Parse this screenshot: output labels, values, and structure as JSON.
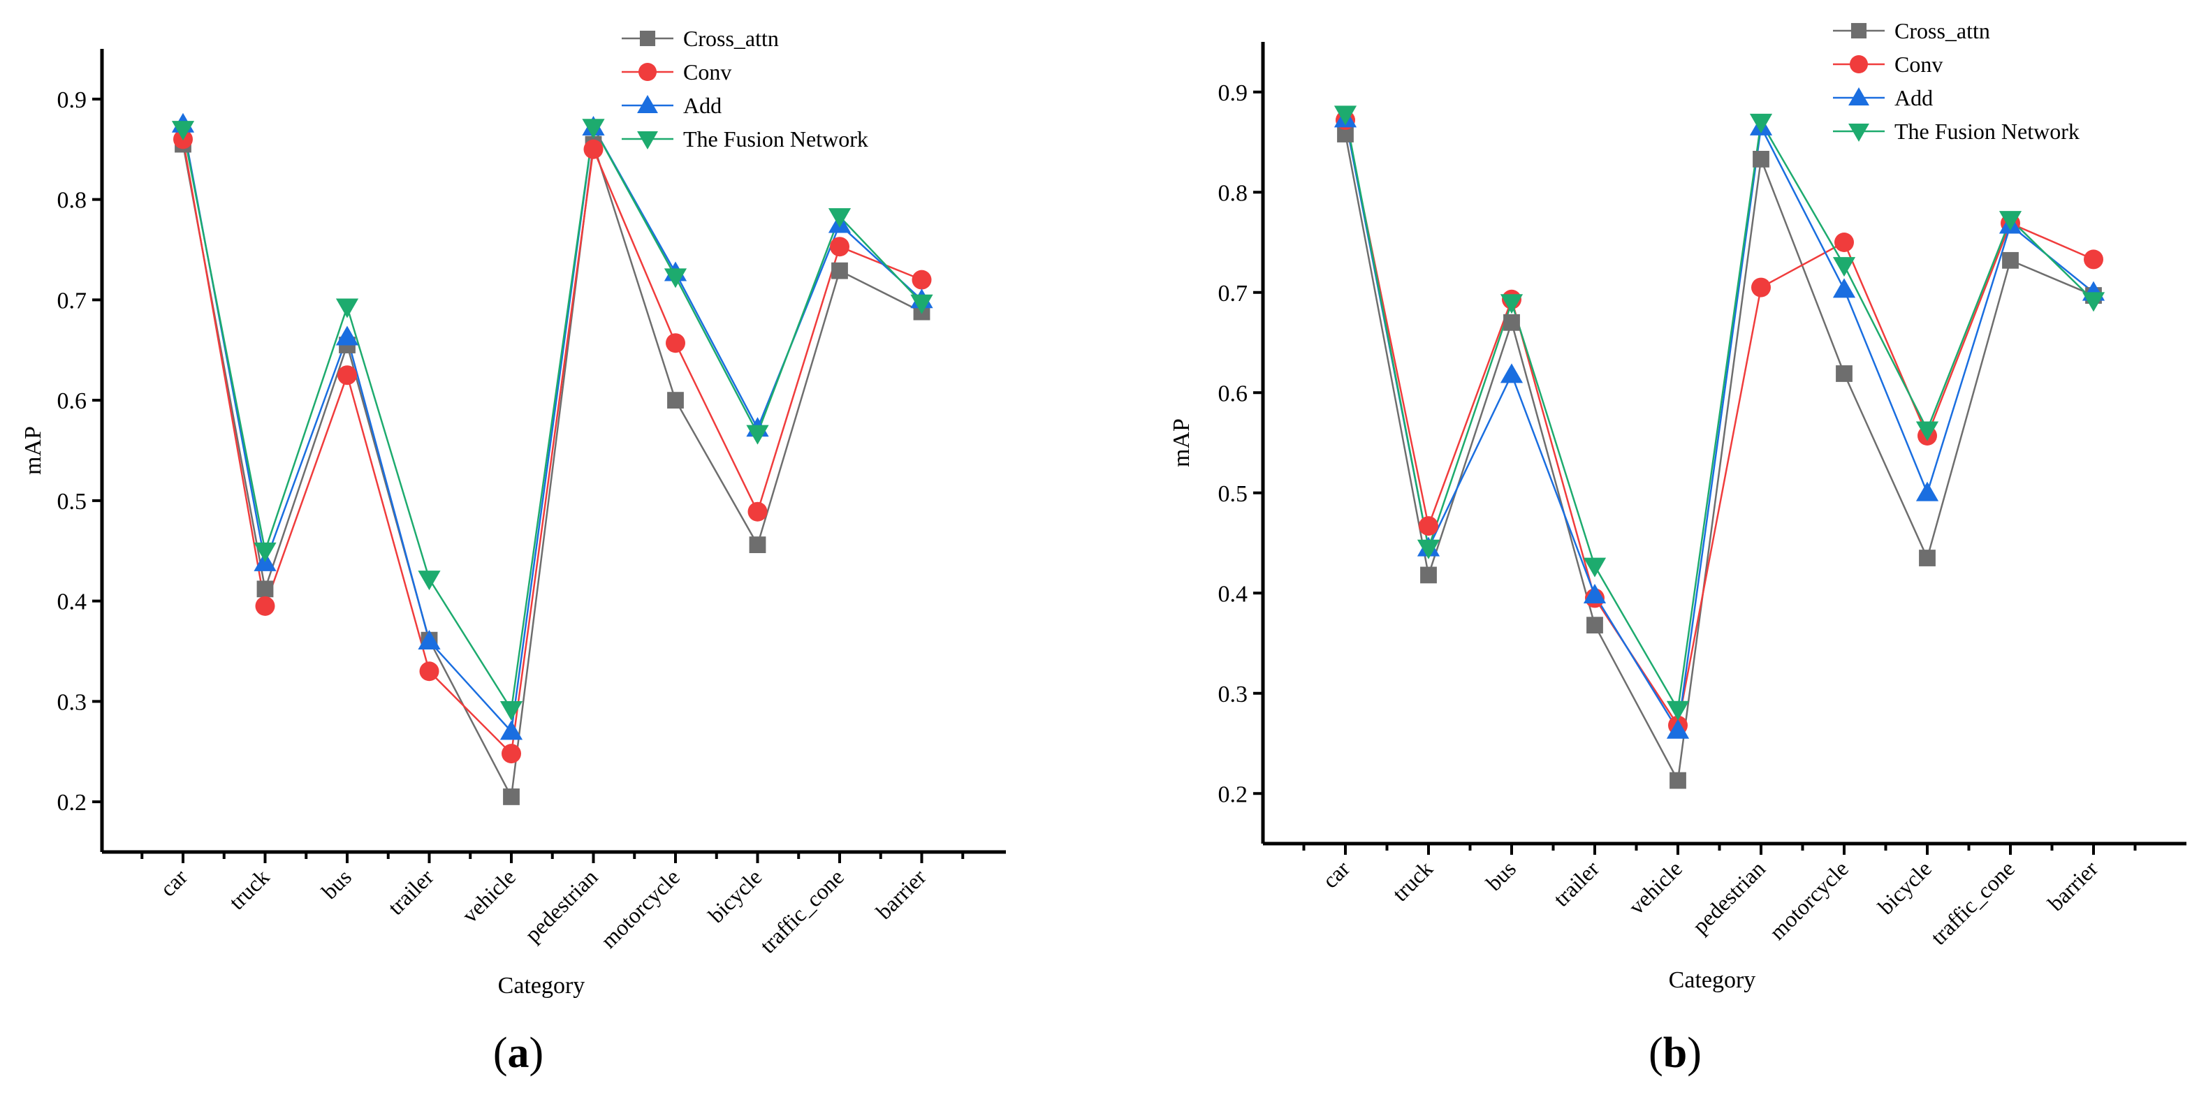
{
  "chart_data": [
    {
      "type": "line",
      "panel_label": "a",
      "title": "",
      "xlabel": "Category",
      "ylabel": "mAP",
      "ylim": [
        0.15,
        0.95
      ],
      "yticks": [
        "0.2",
        "0.3",
        "0.4",
        "0.5",
        "0.6",
        "0.7",
        "0.8",
        "0.9"
      ],
      "categories": [
        "car",
        "truck",
        "bus",
        "trailer",
        "vehicle",
        "pedestrian",
        "motorcycle",
        "bicycle",
        "traffic_cone",
        "barrier"
      ],
      "legend_position": "top-right",
      "series": [
        {
          "name": "Cross_attn",
          "color": "#6e6e6e",
          "marker": "square",
          "values": [
            0.855,
            0.412,
            0.655,
            0.361,
            0.205,
            0.855,
            0.6,
            0.456,
            0.729,
            0.688
          ]
        },
        {
          "name": "Conv",
          "color": "#f03c3c",
          "marker": "circle",
          "values": [
            0.86,
            0.395,
            0.625,
            0.33,
            0.248,
            0.85,
            0.657,
            0.489,
            0.753,
            0.72
          ]
        },
        {
          "name": "Add",
          "color": "#1a6ee0",
          "marker": "triangle-up",
          "values": [
            0.875,
            0.438,
            0.663,
            0.36,
            0.27,
            0.872,
            0.727,
            0.572,
            0.775,
            0.7
          ]
        },
        {
          "name": "The Fusion Network",
          "color": "#1dab6e",
          "marker": "triangle-down",
          "values": [
            0.87,
            0.45,
            0.693,
            0.422,
            0.292,
            0.872,
            0.723,
            0.567,
            0.783,
            0.697
          ]
        }
      ]
    },
    {
      "type": "line",
      "panel_label": "b",
      "title": "",
      "xlabel": "Category",
      "ylabel": "mAP",
      "ylim": [
        0.15,
        0.95
      ],
      "yticks": [
        "0.2",
        "0.3",
        "0.4",
        "0.5",
        "0.6",
        "0.7",
        "0.8",
        "0.9"
      ],
      "categories": [
        "car",
        "truck",
        "bus",
        "trailer",
        "vehicle",
        "pedestrian",
        "motorcycle",
        "bicycle",
        "traffic_cone",
        "barrier"
      ],
      "legend_position": "top-right",
      "series": [
        {
          "name": "Cross_attn",
          "color": "#6e6e6e",
          "marker": "square",
          "values": [
            0.858,
            0.418,
            0.67,
            0.368,
            0.213,
            0.833,
            0.619,
            0.435,
            0.732,
            0.697
          ]
        },
        {
          "name": "Conv",
          "color": "#f03c3c",
          "marker": "circle",
          "values": [
            0.872,
            0.467,
            0.693,
            0.395,
            0.268,
            0.705,
            0.75,
            0.557,
            0.769,
            0.733
          ]
        },
        {
          "name": "Add",
          "color": "#1a6ee0",
          "marker": "triangle-up",
          "values": [
            0.873,
            0.445,
            0.618,
            0.398,
            0.263,
            0.865,
            0.703,
            0.5,
            0.767,
            0.7
          ]
        },
        {
          "name": "The Fusion Network",
          "color": "#1dab6e",
          "marker": "triangle-down",
          "values": [
            0.878,
            0.445,
            0.69,
            0.427,
            0.284,
            0.87,
            0.727,
            0.563,
            0.773,
            0.692
          ]
        }
      ]
    }
  ]
}
